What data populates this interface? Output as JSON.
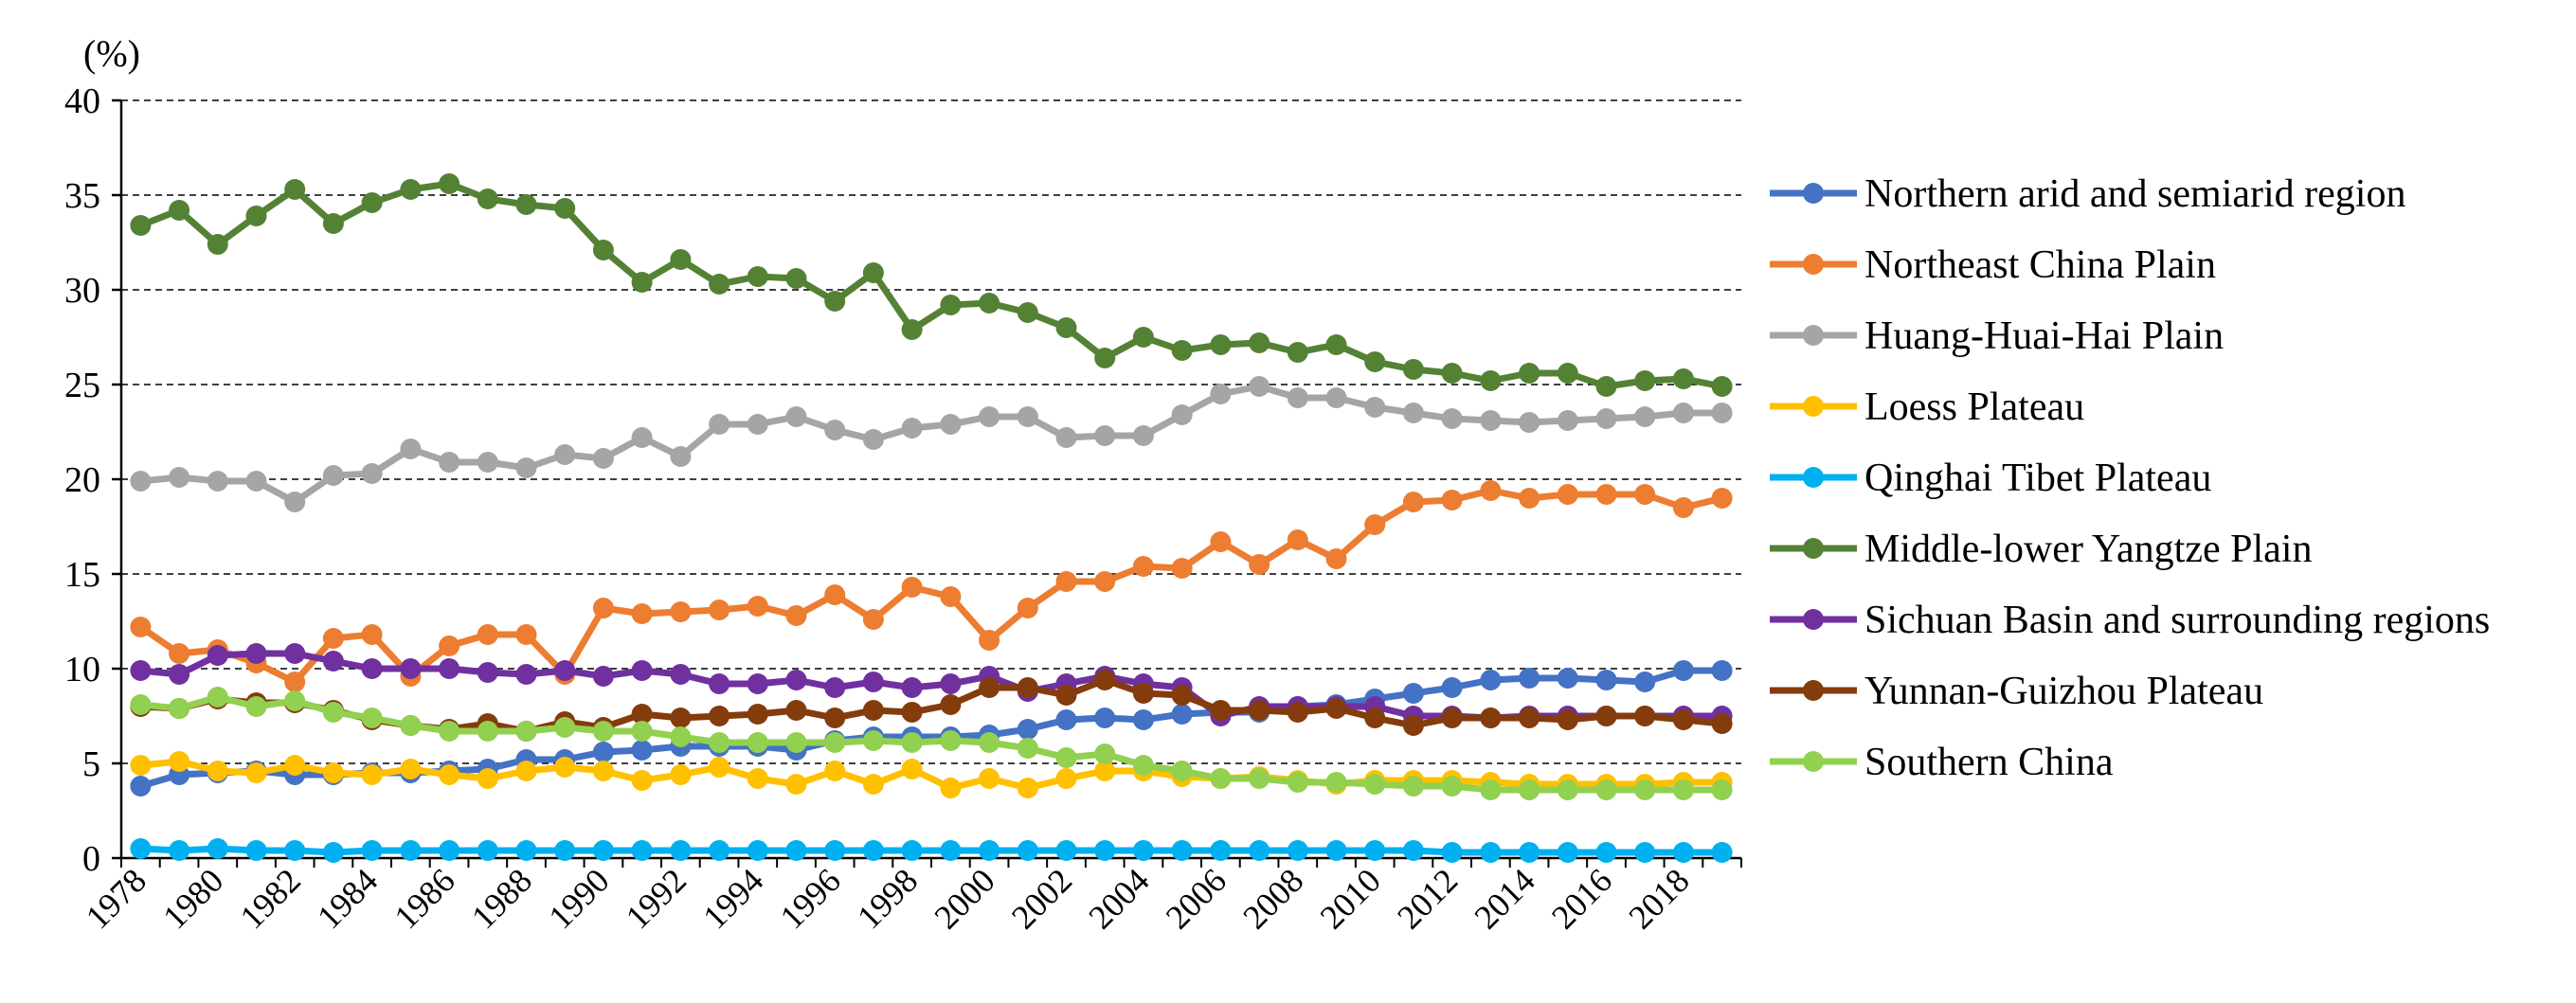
{
  "chart_data": {
    "type": "line",
    "title": "",
    "ylabel": "(%)",
    "xlabel": "",
    "ylim": [
      0,
      40
    ],
    "yticks": [
      0,
      5,
      10,
      15,
      20,
      25,
      30,
      35,
      40
    ],
    "x": [
      1978,
      1979,
      1980,
      1981,
      1982,
      1983,
      1984,
      1985,
      1986,
      1987,
      1988,
      1989,
      1990,
      1991,
      1992,
      1993,
      1994,
      1995,
      1996,
      1997,
      1998,
      1999,
      2000,
      2001,
      2002,
      2003,
      2004,
      2005,
      2006,
      2007,
      2008,
      2009,
      2010,
      2011,
      2012,
      2013,
      2014,
      2015,
      2016,
      2017,
      2018,
      2019
    ],
    "xtick_labels": [
      "1978",
      "1980",
      "1982",
      "1984",
      "1986",
      "1988",
      "1990",
      "1992",
      "1994",
      "1996",
      "1998",
      "2000",
      "2002",
      "2004",
      "2006",
      "2008",
      "2010",
      "2012",
      "2014",
      "2016",
      "2018"
    ],
    "grid": "horizontal dashed",
    "legend_position": "right",
    "series": [
      {
        "name": "Northern arid and semiarid region",
        "color": "#4472C4",
        "values": [
          3.8,
          4.4,
          4.5,
          4.6,
          4.4,
          4.4,
          4.5,
          4.5,
          4.6,
          4.7,
          5.2,
          5.2,
          5.6,
          5.7,
          5.9,
          5.9,
          5.9,
          5.7,
          6.2,
          6.4,
          6.4,
          6.4,
          6.5,
          6.8,
          7.3,
          7.4,
          7.3,
          7.6,
          7.7,
          7.7,
          8.0,
          8.1,
          8.4,
          8.7,
          9.0,
          9.4,
          9.5,
          9.5,
          9.4,
          9.3,
          9.9,
          9.9
        ]
      },
      {
        "name": "Northeast China Plain",
        "color": "#ED7D31",
        "values": [
          12.2,
          10.8,
          11.0,
          10.3,
          9.3,
          11.6,
          11.8,
          9.6,
          11.2,
          11.8,
          11.8,
          9.7,
          13.2,
          12.9,
          13.0,
          13.1,
          13.3,
          12.8,
          13.9,
          12.6,
          14.3,
          13.8,
          11.5,
          13.2,
          14.6,
          14.6,
          15.4,
          15.3,
          16.7,
          15.5,
          16.8,
          15.8,
          17.6,
          18.8,
          18.9,
          19.4,
          19.0,
          19.2,
          19.2,
          19.2,
          18.5,
          19.0
        ]
      },
      {
        "name": "Huang-Huai-Hai Plain",
        "color": "#A5A5A5",
        "values": [
          19.9,
          20.1,
          19.9,
          19.9,
          18.8,
          20.2,
          20.3,
          21.6,
          20.9,
          20.9,
          20.6,
          21.3,
          21.1,
          22.2,
          21.2,
          22.9,
          22.9,
          23.3,
          22.6,
          22.1,
          22.7,
          22.9,
          23.3,
          23.3,
          22.2,
          22.3,
          22.3,
          23.4,
          24.5,
          24.9,
          24.3,
          24.3,
          23.8,
          23.5,
          23.2,
          23.1,
          23.0,
          23.1,
          23.2,
          23.3,
          23.5,
          23.5
        ]
      },
      {
        "name": "Loess Plateau",
        "color": "#FFC000",
        "values": [
          4.9,
          5.1,
          4.6,
          4.5,
          4.9,
          4.5,
          4.4,
          4.7,
          4.4,
          4.2,
          4.6,
          4.8,
          4.6,
          4.1,
          4.4,
          4.8,
          4.2,
          3.9,
          4.6,
          3.9,
          4.7,
          3.7,
          4.2,
          3.7,
          4.2,
          4.6,
          4.6,
          4.3,
          4.2,
          4.3,
          4.1,
          3.9,
          4.1,
          4.1,
          4.1,
          4.0,
          3.9,
          3.9,
          3.9,
          3.9,
          4.0,
          4.0
        ]
      },
      {
        "name": "Qinghai Tibet Plateau",
        "color": "#00B0F0",
        "values": [
          0.5,
          0.4,
          0.5,
          0.4,
          0.4,
          0.3,
          0.4,
          0.4,
          0.4,
          0.4,
          0.4,
          0.4,
          0.4,
          0.4,
          0.4,
          0.4,
          0.4,
          0.4,
          0.4,
          0.4,
          0.4,
          0.4,
          0.4,
          0.4,
          0.4,
          0.4,
          0.4,
          0.4,
          0.4,
          0.4,
          0.4,
          0.4,
          0.4,
          0.4,
          0.3,
          0.3,
          0.3,
          0.3,
          0.3,
          0.3,
          0.3,
          0.3
        ]
      },
      {
        "name": "Middle-lower Yangtze Plain",
        "color": "#548235",
        "values": [
          33.4,
          34.2,
          32.4,
          33.9,
          35.3,
          33.5,
          34.6,
          35.3,
          35.6,
          34.8,
          34.5,
          34.3,
          32.1,
          30.4,
          31.6,
          30.3,
          30.7,
          30.6,
          29.4,
          30.9,
          27.9,
          29.2,
          29.3,
          28.8,
          28.0,
          26.4,
          27.5,
          26.8,
          27.1,
          27.2,
          26.7,
          27.1,
          26.2,
          25.8,
          25.6,
          25.2,
          25.6,
          25.6,
          24.9,
          25.2,
          25.3,
          24.9
        ]
      },
      {
        "name": "Sichuan Basin and surrounding regions",
        "color": "#7030A0",
        "values": [
          9.9,
          9.7,
          10.7,
          10.8,
          10.8,
          10.4,
          10.0,
          10.0,
          10.0,
          9.8,
          9.7,
          9.9,
          9.6,
          9.9,
          9.7,
          9.2,
          9.2,
          9.4,
          9.0,
          9.3,
          9.0,
          9.2,
          9.6,
          8.8,
          9.2,
          9.6,
          9.2,
          9.0,
          7.5,
          8.0,
          8.0,
          8.0,
          8.0,
          7.5,
          7.5,
          7.4,
          7.5,
          7.5,
          7.5,
          7.5,
          7.5,
          7.5
        ]
      },
      {
        "name": "Yunnan-Guizhou Plateau",
        "color": "#843C0C",
        "values": [
          8.0,
          7.9,
          8.4,
          8.2,
          8.2,
          7.8,
          7.3,
          7.0,
          6.8,
          7.1,
          6.7,
          7.2,
          6.9,
          7.6,
          7.4,
          7.5,
          7.6,
          7.8,
          7.4,
          7.8,
          7.7,
          8.1,
          9.0,
          9.0,
          8.6,
          9.4,
          8.7,
          8.6,
          7.8,
          7.8,
          7.7,
          7.9,
          7.4,
          7.0,
          7.4,
          7.4,
          7.4,
          7.3,
          7.5,
          7.5,
          7.3,
          7.1
        ]
      },
      {
        "name": "Southern China",
        "color": "#92D050",
        "values": [
          8.1,
          7.9,
          8.5,
          8.0,
          8.3,
          7.7,
          7.4,
          7.0,
          6.7,
          6.7,
          6.7,
          6.9,
          6.7,
          6.7,
          6.4,
          6.1,
          6.1,
          6.1,
          6.1,
          6.2,
          6.1,
          6.2,
          6.1,
          5.8,
          5.3,
          5.5,
          4.9,
          4.6,
          4.2,
          4.2,
          4.0,
          4.0,
          3.9,
          3.8,
          3.8,
          3.6,
          3.6,
          3.6,
          3.6,
          3.6,
          3.6,
          3.6
        ]
      }
    ]
  }
}
